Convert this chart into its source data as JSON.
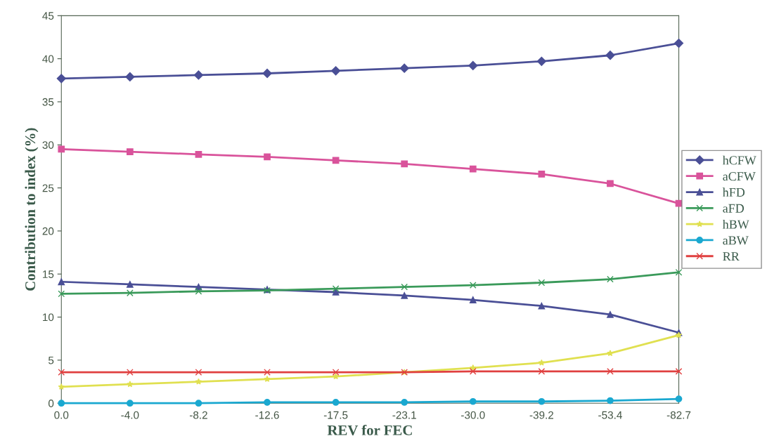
{
  "chart_data": {
    "type": "line",
    "xlabel": "REV for FEC",
    "ylabel": "Contribution to index (%)",
    "categories": [
      "0.0",
      "-4.0",
      "-8.2",
      "-12.6",
      "-17.5",
      "-23.1",
      "-30.0",
      "-39.2",
      "-53.4",
      "-82.7"
    ],
    "ylim": [
      0,
      45
    ],
    "yticks": [
      0,
      5,
      10,
      15,
      20,
      25,
      30,
      35,
      40,
      45
    ],
    "grid": false,
    "legend": "right",
    "series": [
      {
        "name": "hCFW",
        "color": "#4a4f96",
        "marker": "diamond",
        "values": [
          37.7,
          37.9,
          38.1,
          38.3,
          38.6,
          38.9,
          39.2,
          39.7,
          40.4,
          41.8
        ]
      },
      {
        "name": "aCFW",
        "color": "#d9539b",
        "marker": "square",
        "values": [
          29.5,
          29.2,
          28.9,
          28.6,
          28.2,
          27.8,
          27.2,
          26.6,
          25.5,
          23.2
        ]
      },
      {
        "name": "hFD",
        "color": "#4a4f96",
        "marker": "triangle",
        "values": [
          14.1,
          13.8,
          13.5,
          13.2,
          12.9,
          12.5,
          12.0,
          11.3,
          10.3,
          8.2
        ]
      },
      {
        "name": "aFD",
        "color": "#3a9a5a",
        "marker": "cross",
        "values": [
          12.7,
          12.8,
          13.0,
          13.1,
          13.3,
          13.5,
          13.7,
          14.0,
          14.4,
          15.2
        ]
      },
      {
        "name": "hBW",
        "color": "#e0e050",
        "marker": "star",
        "values": [
          1.9,
          2.2,
          2.5,
          2.8,
          3.1,
          3.6,
          4.1,
          4.7,
          5.8,
          7.9
        ]
      },
      {
        "name": "aBW",
        "color": "#1aa8d0",
        "marker": "circle",
        "values": [
          0.0,
          0.0,
          0.0,
          0.1,
          0.1,
          0.1,
          0.2,
          0.2,
          0.3,
          0.5
        ]
      },
      {
        "name": "RR",
        "color": "#e04040",
        "marker": "cross",
        "values": [
          3.6,
          3.6,
          3.6,
          3.6,
          3.6,
          3.6,
          3.7,
          3.7,
          3.7,
          3.7
        ]
      }
    ]
  }
}
